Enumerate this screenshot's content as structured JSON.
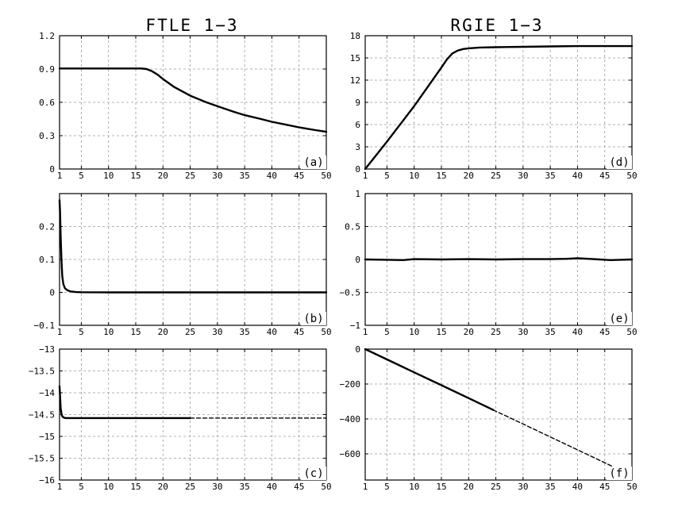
{
  "titles": {
    "left": "FTLE 1−3",
    "right": "RGIE 1−3"
  },
  "chart_data": [
    {
      "type": "line",
      "panel_label": "(a)",
      "xlim": [
        1,
        50
      ],
      "xticks": [
        1,
        5,
        10,
        15,
        20,
        25,
        30,
        35,
        40,
        45,
        50
      ],
      "ylim": [
        0,
        1.2
      ],
      "yticks": [
        0,
        0.3,
        0.6,
        0.9,
        1.2
      ],
      "ytick_labels": [
        "0",
        "0.3",
        "0.6",
        "0.9",
        "1.2"
      ],
      "grid": true,
      "series": [
        {
          "style": "solid",
          "x": [
            1,
            5,
            10,
            15,
            16,
            17,
            18,
            19,
            20,
            22,
            25,
            28,
            30,
            33,
            35,
            38,
            40,
            43,
            45,
            48,
            50
          ],
          "y": [
            0.905,
            0.905,
            0.905,
            0.905,
            0.905,
            0.9,
            0.88,
            0.85,
            0.81,
            0.74,
            0.66,
            0.6,
            0.565,
            0.515,
            0.485,
            0.45,
            0.425,
            0.395,
            0.375,
            0.35,
            0.335
          ]
        }
      ]
    },
    {
      "type": "line",
      "panel_label": "(b)",
      "xlim": [
        1,
        50
      ],
      "xticks": [
        1,
        5,
        10,
        15,
        20,
        25,
        30,
        35,
        40,
        45,
        50
      ],
      "ylim": [
        -0.1,
        0.3
      ],
      "yticks": [
        -0.1,
        0,
        0.1,
        0.2
      ],
      "ytick_labels": [
        "−0.1",
        "0",
        "0.1",
        "0.2"
      ],
      "grid": true,
      "series": [
        {
          "style": "solid",
          "x": [
            1,
            1.1,
            1.2,
            1.35,
            1.5,
            1.7,
            2,
            2.5,
            3,
            4,
            5,
            10,
            20,
            30,
            40,
            50
          ],
          "y": [
            0.28,
            0.24,
            0.17,
            0.1,
            0.05,
            0.025,
            0.012,
            0.006,
            0.003,
            0.001,
            0.0005,
            0,
            0,
            0,
            0,
            0
          ]
        }
      ]
    },
    {
      "type": "line",
      "panel_label": "(c)",
      "xlim": [
        1,
        50
      ],
      "xticks": [
        1,
        5,
        10,
        15,
        20,
        25,
        30,
        35,
        40,
        45,
        50
      ],
      "ylim": [
        -16,
        -13
      ],
      "yticks": [
        -16,
        -15.5,
        -15,
        -14.5,
        -14,
        -13.5,
        -13
      ],
      "ytick_labels": [
        "−16",
        "−15.5",
        "−15",
        "−14.5",
        "−14",
        "−13.5",
        "−13"
      ],
      "grid": true,
      "series": [
        {
          "style": "solid",
          "x": [
            1,
            1.1,
            1.2,
            1.35,
            1.5,
            1.8,
            2.2,
            3,
            5,
            10,
            15,
            20,
            25
          ],
          "y": [
            -13.85,
            -14.1,
            -14.35,
            -14.48,
            -14.54,
            -14.57,
            -14.58,
            -14.58,
            -14.58,
            -14.58,
            -14.58,
            -14.58,
            -14.58
          ]
        },
        {
          "style": "dashed",
          "x": [
            25,
            30,
            35,
            40,
            45,
            50
          ],
          "y": [
            -14.58,
            -14.58,
            -14.58,
            -14.58,
            -14.58,
            -14.58
          ]
        }
      ]
    },
    {
      "type": "line",
      "panel_label": "(d)",
      "xlim": [
        1,
        50
      ],
      "xticks": [
        1,
        5,
        10,
        15,
        20,
        25,
        30,
        35,
        40,
        45,
        50
      ],
      "ylim": [
        0,
        18
      ],
      "yticks": [
        0,
        3,
        6,
        9,
        12,
        15,
        18
      ],
      "ytick_labels": [
        "0",
        "3",
        "6",
        "9",
        "12",
        "15",
        "18"
      ],
      "grid": true,
      "series": [
        {
          "style": "solid",
          "x": [
            1,
            5,
            10,
            15,
            16,
            17,
            18,
            19,
            20,
            22,
            25,
            30,
            35,
            40,
            45,
            50
          ],
          "y": [
            0,
            3.7,
            8.5,
            13.7,
            14.8,
            15.6,
            16.0,
            16.2,
            16.3,
            16.4,
            16.45,
            16.5,
            16.55,
            16.6,
            16.6,
            16.6
          ]
        }
      ]
    },
    {
      "type": "line",
      "panel_label": "(e)",
      "xlim": [
        1,
        50
      ],
      "xticks": [
        1,
        5,
        10,
        15,
        20,
        25,
        30,
        35,
        40,
        45,
        50
      ],
      "ylim": [
        -1,
        1
      ],
      "yticks": [
        -1,
        -0.5,
        0,
        0.5,
        1
      ],
      "ytick_labels": [
        "−1",
        "−0.5",
        "0",
        "0.5",
        "1"
      ],
      "grid": true,
      "series": [
        {
          "style": "solid",
          "x": [
            1,
            5,
            8,
            10,
            15,
            20,
            25,
            30,
            35,
            38,
            40,
            42,
            44,
            46,
            48,
            50
          ],
          "y": [
            0,
            -0.005,
            -0.01,
            0.005,
            0,
            0.005,
            0,
            0.005,
            0.005,
            0.01,
            0.018,
            0.01,
            0,
            -0.01,
            -0.005,
            0
          ]
        }
      ]
    },
    {
      "type": "line",
      "panel_label": "(f)",
      "xlim": [
        1,
        50
      ],
      "xticks": [
        1,
        5,
        10,
        15,
        20,
        25,
        30,
        35,
        40,
        45,
        50
      ],
      "ylim": [
        -750,
        0
      ],
      "yticks": [
        -600,
        -400,
        -200,
        0
      ],
      "ytick_labels": [
        "−600",
        "−400",
        "−200",
        "0"
      ],
      "grid": true,
      "series": [
        {
          "style": "solid",
          "x": [
            1,
            5,
            10,
            15,
            20,
            24.5
          ],
          "y": [
            0,
            -59,
            -133,
            -207,
            -281,
            -348
          ]
        },
        {
          "style": "dashed",
          "x": [
            24.5,
            30,
            35,
            40,
            45,
            50
          ],
          "y": [
            -348,
            -429,
            -503,
            -577,
            -651,
            -725
          ]
        }
      ]
    }
  ]
}
